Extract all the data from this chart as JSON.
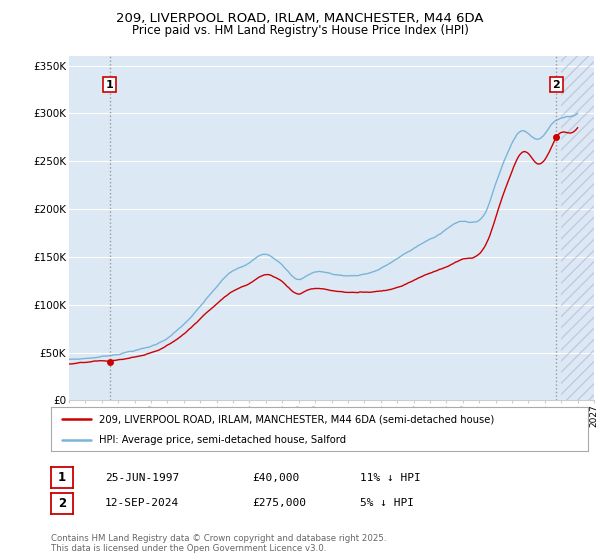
{
  "title_line1": "209, LIVERPOOL ROAD, IRLAM, MANCHESTER, M44 6DA",
  "title_line2": "Price paid vs. HM Land Registry's House Price Index (HPI)",
  "background_color": "#dce9f5",
  "plot_bg_color": "#dce9f5",
  "red_line_color": "#cc0000",
  "blue_line_color": "#7ab4d8",
  "grid_color": "#ffffff",
  "legend_label_red": "209, LIVERPOOL ROAD, IRLAM, MANCHESTER, M44 6DA (semi-detached house)",
  "legend_label_blue": "HPI: Average price, semi-detached house, Salford",
  "sale1_date": "25-JUN-1997",
  "sale1_price": 40000,
  "sale1_label": "11% ↓ HPI",
  "sale2_date": "12-SEP-2024",
  "sale2_price": 275000,
  "sale2_label": "5% ↓ HPI",
  "copyright_text": "Contains HM Land Registry data © Crown copyright and database right 2025.\nThis data is licensed under the Open Government Licence v3.0.",
  "xmin": 1995.0,
  "xmax": 2027.0,
  "ymin": 0,
  "ymax": 360000,
  "yticks": [
    0,
    50000,
    100000,
    150000,
    200000,
    250000,
    300000,
    350000
  ],
  "ytick_labels": [
    "£0",
    "£50K",
    "£100K",
    "£150K",
    "£200K",
    "£250K",
    "£300K",
    "£350K"
  ],
  "sale1_x": 1997.47,
  "sale2_x": 2024.7
}
